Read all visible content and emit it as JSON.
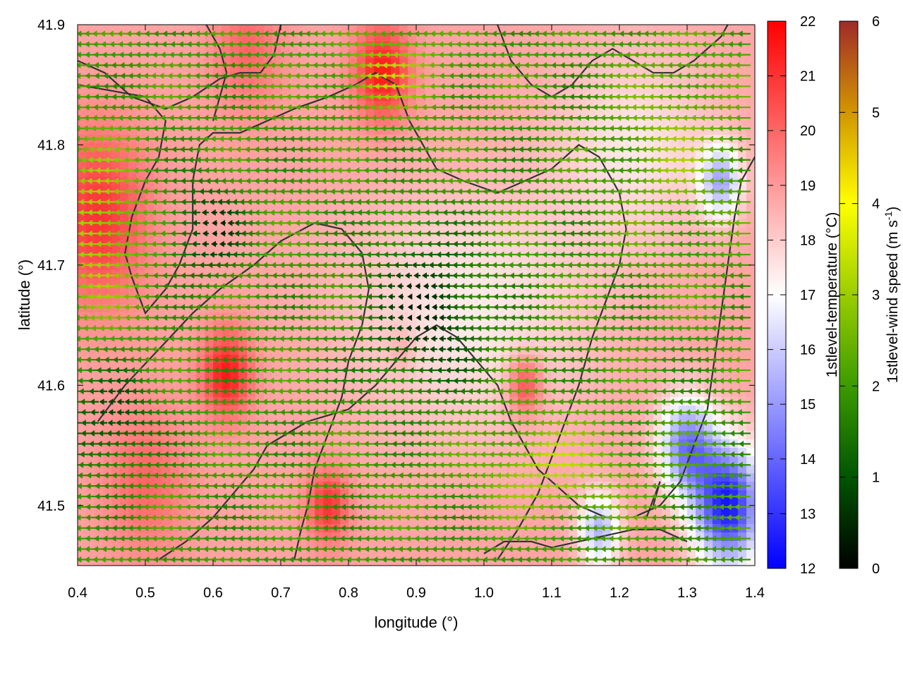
{
  "chart_data": {
    "type": "heatmap",
    "xlabel": "longitude (°)",
    "ylabel": "latitude (°)",
    "xlim": [
      0.4,
      1.4
    ],
    "ylim": [
      41.45,
      41.9
    ],
    "xticks": [
      "0.4",
      "0.5",
      "0.6",
      "0.7",
      "0.8",
      "0.9",
      "1.0",
      "1.1",
      "1.2",
      "1.3",
      "1.4"
    ],
    "yticks": [
      "41.5",
      "41.6",
      "41.7",
      "41.8",
      "41.9"
    ],
    "temperature": {
      "label": "1stlevel-temperature (°C)",
      "range": [
        12,
        22
      ],
      "ticks": [
        "12",
        "13",
        "14",
        "15",
        "16",
        "17",
        "18",
        "19",
        "20",
        "21",
        "22"
      ],
      "colors": [
        "#0000ff",
        "#ffffff",
        "#ff0000"
      ],
      "hotspots": [
        {
          "lon": 0.43,
          "lat": 41.74,
          "value": 21.0,
          "r": 0.07
        },
        {
          "lon": 0.62,
          "lat": 41.61,
          "value": 21.5,
          "r": 0.035
        },
        {
          "lon": 0.85,
          "lat": 41.86,
          "value": 21.5,
          "r": 0.04
        },
        {
          "lon": 0.77,
          "lat": 41.5,
          "value": 21.0,
          "r": 0.03
        },
        {
          "lon": 1.06,
          "lat": 41.6,
          "value": 21.0,
          "r": 0.025
        },
        {
          "lon": 0.5,
          "lat": 41.52,
          "value": 20.0,
          "r": 0.06
        },
        {
          "lon": 0.65,
          "lat": 41.88,
          "value": 20.0,
          "r": 0.05
        },
        {
          "lon": 0.88,
          "lat": 41.63,
          "value": 19.5,
          "r": 0.02
        }
      ],
      "coldspots": [
        {
          "lon": 1.36,
          "lat": 41.5,
          "value": 12.5,
          "r": 0.05
        },
        {
          "lon": 1.3,
          "lat": 41.55,
          "value": 14.5,
          "r": 0.04
        },
        {
          "lon": 1.35,
          "lat": 41.77,
          "value": 15.5,
          "r": 0.03
        },
        {
          "lon": 1.17,
          "lat": 41.48,
          "value": 15.5,
          "r": 0.03
        }
      ]
    },
    "wind": {
      "label_main": "1stlevel-wind speed (m s",
      "label_exp": "-1",
      "label_end": ")",
      "range": [
        0,
        6
      ],
      "ticks": [
        "0",
        "1",
        "2",
        "3",
        "4",
        "5",
        "6"
      ],
      "colors": [
        "#000000",
        "#005500",
        "#3c9b00",
        "#9bcd00",
        "#ffff00",
        "#d29600",
        "#a02a2a"
      ],
      "direction_deg_from_east": 180,
      "grid_spacing_deg": 0.0125
    },
    "coastlines_lonlat": [
      [
        [
          0.4,
          41.87
        ],
        [
          0.44,
          41.86
        ],
        [
          0.48,
          41.84
        ],
        [
          0.53,
          41.83
        ],
        [
          0.57,
          41.84
        ],
        [
          0.61,
          41.855
        ],
        [
          0.64,
          41.86
        ],
        [
          0.67,
          41.86
        ],
        [
          0.69,
          41.875
        ],
        [
          0.7,
          41.9
        ]
      ],
      [
        [
          0.4,
          41.85
        ],
        [
          0.45,
          41.845
        ],
        [
          0.5,
          41.84
        ],
        [
          0.53,
          41.82
        ],
        [
          0.52,
          41.79
        ],
        [
          0.5,
          41.77
        ],
        [
          0.48,
          41.74
        ],
        [
          0.47,
          41.71
        ],
        [
          0.48,
          41.69
        ],
        [
          0.5,
          41.66
        ],
        [
          0.53,
          41.68
        ],
        [
          0.55,
          41.7
        ],
        [
          0.57,
          41.73
        ],
        [
          0.57,
          41.77
        ],
        [
          0.58,
          41.8
        ],
        [
          0.6,
          41.81
        ],
        [
          0.64,
          41.81
        ],
        [
          0.68,
          41.82
        ],
        [
          0.72,
          41.83
        ],
        [
          0.77,
          41.84
        ],
        [
          0.81,
          41.85
        ],
        [
          0.84,
          41.86
        ],
        [
          0.87,
          41.85
        ],
        [
          0.89,
          41.82
        ],
        [
          0.91,
          41.8
        ],
        [
          0.93,
          41.78
        ],
        [
          0.97,
          41.77
        ],
        [
          1.02,
          41.76
        ],
        [
          1.06,
          41.77
        ],
        [
          1.1,
          41.78
        ],
        [
          1.14,
          41.8
        ],
        [
          1.17,
          41.79
        ],
        [
          1.2,
          41.76
        ],
        [
          1.21,
          41.73
        ],
        [
          1.2,
          41.7
        ],
        [
          1.18,
          41.67
        ],
        [
          1.16,
          41.64
        ],
        [
          1.14,
          41.6
        ],
        [
          1.12,
          41.57
        ],
        [
          1.1,
          41.54
        ],
        [
          1.08,
          41.51
        ],
        [
          1.05,
          41.48
        ],
        [
          1.02,
          41.455
        ]
      ],
      [
        [
          0.43,
          41.57
        ],
        [
          0.47,
          41.6
        ],
        [
          0.52,
          41.63
        ],
        [
          0.57,
          41.66
        ],
        [
          0.61,
          41.68
        ],
        [
          0.66,
          41.7
        ],
        [
          0.7,
          41.72
        ],
        [
          0.75,
          41.735
        ],
        [
          0.79,
          41.73
        ],
        [
          0.82,
          41.71
        ],
        [
          0.83,
          41.68
        ],
        [
          0.82,
          41.65
        ],
        [
          0.8,
          41.62
        ],
        [
          0.79,
          41.59
        ],
        [
          0.77,
          41.56
        ],
        [
          0.75,
          41.53
        ],
        [
          0.74,
          41.5
        ],
        [
          0.73,
          41.48
        ],
        [
          0.72,
          41.455
        ]
      ],
      [
        [
          0.52,
          41.455
        ],
        [
          0.56,
          41.47
        ],
        [
          0.6,
          41.49
        ],
        [
          0.63,
          41.51
        ],
        [
          0.66,
          41.53
        ],
        [
          0.68,
          41.55
        ],
        [
          0.71,
          41.56
        ],
        [
          0.74,
          41.57
        ],
        [
          0.77,
          41.575
        ],
        [
          0.8,
          41.58
        ],
        [
          0.84,
          41.6
        ],
        [
          0.87,
          41.62
        ],
        [
          0.9,
          41.64
        ],
        [
          0.93,
          41.65
        ],
        [
          0.96,
          41.64
        ],
        [
          0.99,
          41.62
        ],
        [
          1.02,
          41.6
        ],
        [
          1.04,
          41.57
        ],
        [
          1.06,
          41.55
        ],
        [
          1.08,
          41.53
        ],
        [
          1.1,
          41.52
        ],
        [
          1.14,
          41.5
        ],
        [
          1.18,
          41.49
        ],
        [
          1.22,
          41.49
        ],
        [
          1.26,
          41.5
        ],
        [
          1.29,
          41.52
        ],
        [
          1.31,
          41.55
        ],
        [
          1.33,
          41.58
        ],
        [
          1.34,
          41.62
        ],
        [
          1.35,
          41.66
        ],
        [
          1.36,
          41.7
        ],
        [
          1.37,
          41.74
        ],
        [
          1.38,
          41.77
        ],
        [
          1.4,
          41.79
        ]
      ],
      [
        [
          0.59,
          41.9
        ],
        [
          0.61,
          41.88
        ],
        [
          0.62,
          41.86
        ],
        [
          0.61,
          41.84
        ],
        [
          0.6,
          41.82
        ]
      ],
      [
        [
          1.02,
          41.9
        ],
        [
          1.04,
          41.87
        ],
        [
          1.07,
          41.85
        ],
        [
          1.1,
          41.84
        ],
        [
          1.13,
          41.85
        ],
        [
          1.16,
          41.87
        ],
        [
          1.19,
          41.88
        ],
        [
          1.22,
          41.87
        ],
        [
          1.25,
          41.86
        ],
        [
          1.28,
          41.86
        ],
        [
          1.31,
          41.87
        ],
        [
          1.33,
          41.88
        ],
        [
          1.35,
          41.89
        ],
        [
          1.36,
          41.9
        ]
      ],
      [
        [
          1.0,
          41.46
        ],
        [
          1.03,
          41.47
        ],
        [
          1.07,
          41.47
        ],
        [
          1.1,
          41.465
        ],
        [
          1.14,
          41.47
        ],
        [
          1.18,
          41.475
        ],
        [
          1.22,
          41.48
        ],
        [
          1.26,
          41.48
        ],
        [
          1.3,
          41.47
        ]
      ],
      [
        [
          1.24,
          41.49
        ],
        [
          1.26,
          41.52
        ],
        [
          1.25,
          41.5
        ]
      ]
    ]
  }
}
